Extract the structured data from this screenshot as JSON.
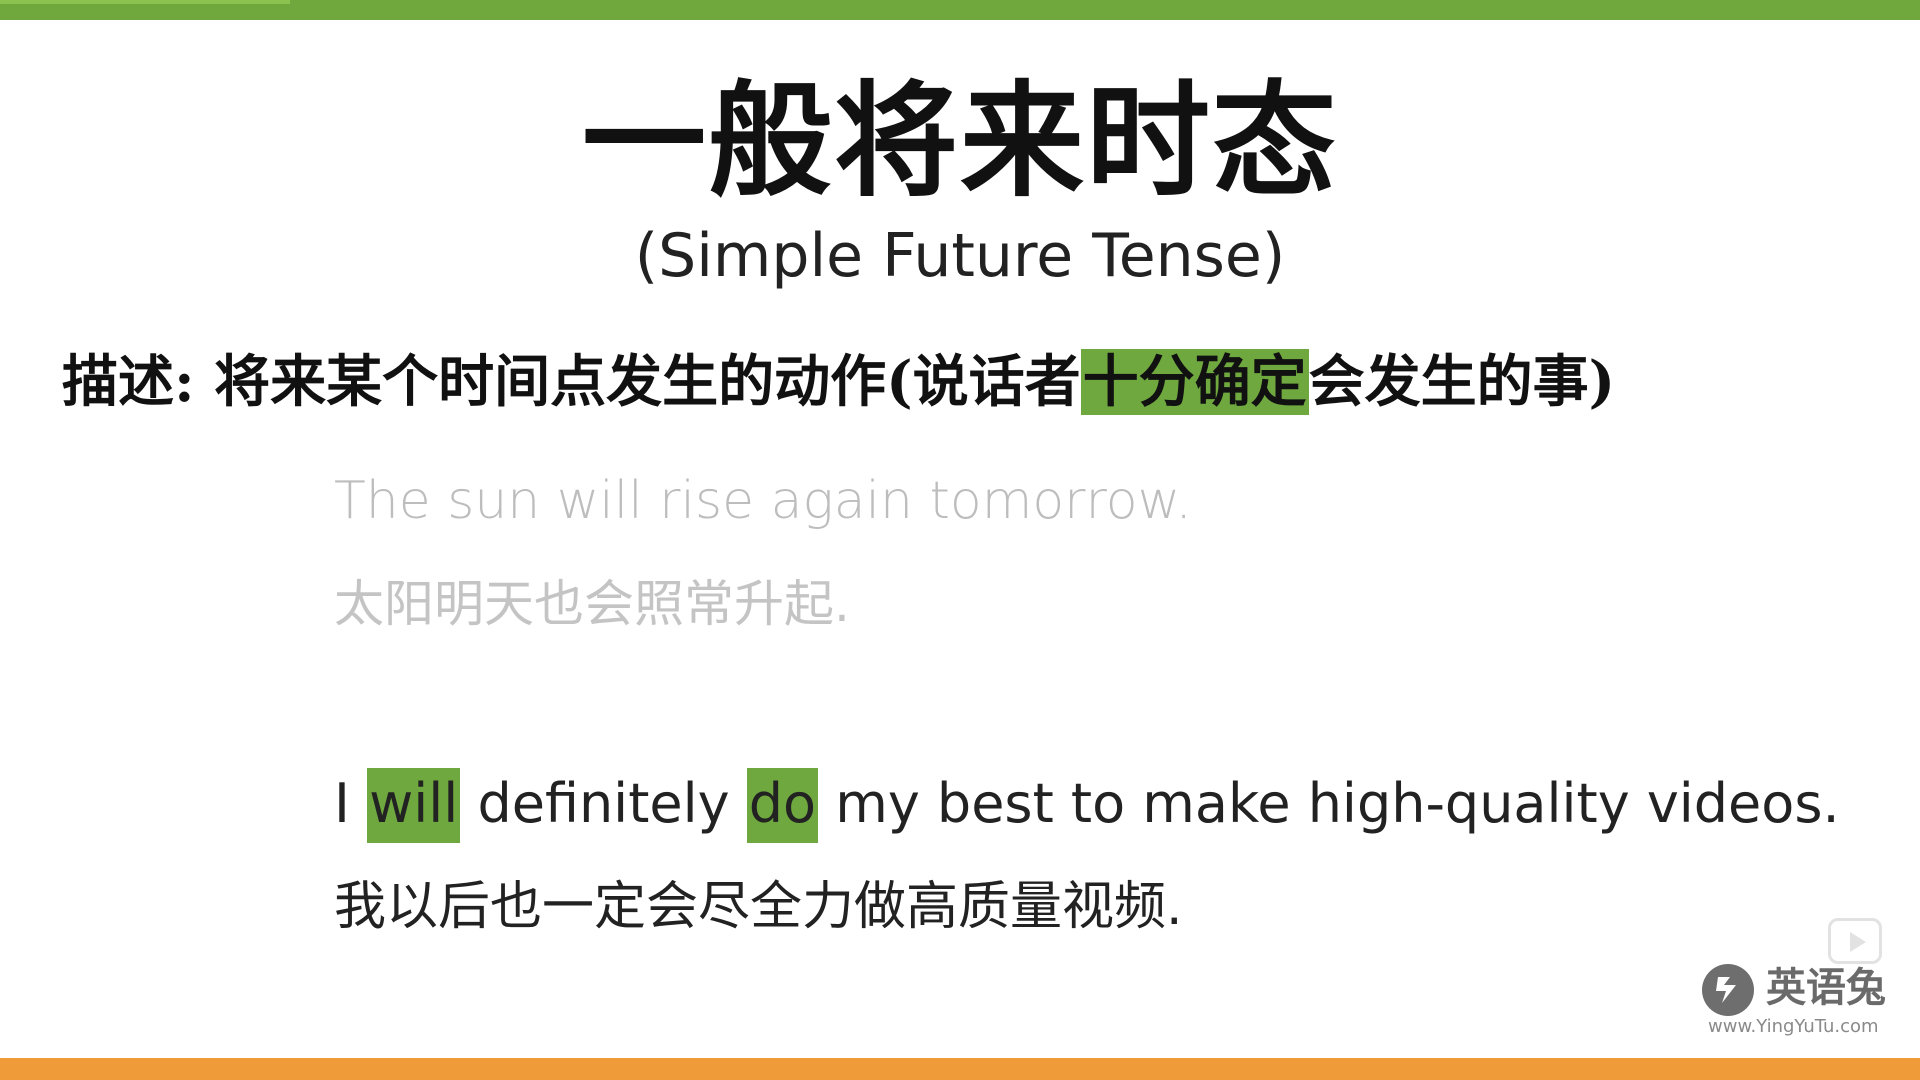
{
  "slide": {
    "title": "一般将来时态",
    "subtitle": "(Simple Future Tense)",
    "description": {
      "before": "描述: 将来某个时间点发生的动作(说话者",
      "highlight": "十分确定",
      "after": "会发生的事)"
    },
    "example1": {
      "english": "The sun will rise again tomorrow.",
      "chinese": "太阳明天也会照常升起."
    },
    "example2": {
      "english_parts": {
        "p1": "I ",
        "h1": "will",
        "p2": " definitely ",
        "h2": "do",
        "p3": " my best to make high-quality videos."
      },
      "chinese": "我以后也一定会尽全力做高质量视频."
    }
  },
  "watermark": {
    "brand": "英语兔",
    "url": "www.YingYuTu.com",
    "logo_icon": "rabbit-logo-icon",
    "play_icon": "play-icon"
  },
  "colors": {
    "top_bar": "#70a83e",
    "bottom_bar": "#ef9b3a",
    "highlight": "#6fa83e"
  }
}
